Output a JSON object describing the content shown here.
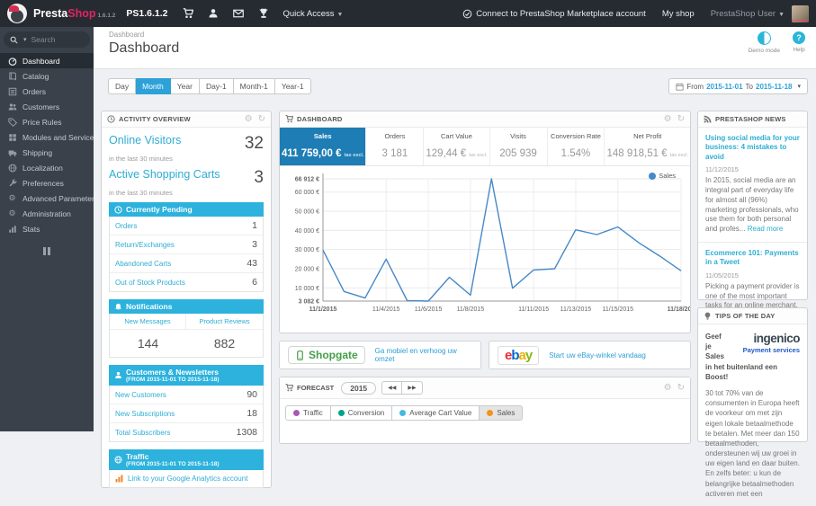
{
  "colors": {
    "accent": "#2eadd3",
    "section_header": "#2cb2dd",
    "kpi_active_blue": "#1d7db4",
    "line_blue": "#4788c7",
    "topbar_bg": "#262b31",
    "sidebar_bg": "#3a414a",
    "tab_active": "#2da1d8"
  },
  "topbar": {
    "brand_presta": "Presta",
    "brand_shop": "Shop",
    "brand_version": "1.6.1.2",
    "ps_version": "PS1.6.1.2",
    "quick_access": "Quick Access",
    "marketplace_link": "Connect to PrestaShop Marketplace account",
    "my_shop": "My shop",
    "user": "PrestaShop User",
    "avatar_caption": "PrestaShop"
  },
  "sidebar": {
    "search_placeholder": "Search",
    "items": [
      {
        "label": "Dashboard",
        "icon": "tachometer",
        "active": true
      },
      {
        "label": "Catalog",
        "icon": "book"
      },
      {
        "label": "Orders",
        "icon": "list"
      },
      {
        "label": "Customers",
        "icon": "users"
      },
      {
        "label": "Price Rules",
        "icon": "tag"
      },
      {
        "label": "Modules and Services",
        "icon": "modules"
      },
      {
        "label": "Shipping",
        "icon": "truck"
      },
      {
        "label": "Localization",
        "icon": "globe"
      },
      {
        "label": "Preferences",
        "icon": "wrench"
      },
      {
        "label": "Advanced Parameters",
        "icon": "cogs"
      },
      {
        "label": "Administration",
        "icon": "gear"
      },
      {
        "label": "Stats",
        "icon": "bar-chart"
      }
    ]
  },
  "header": {
    "breadcrumb": "Dashboard",
    "title": "Dashboard",
    "demo_mode": "Demo mode",
    "help": "Help"
  },
  "range": {
    "tabs": [
      {
        "label": "Day"
      },
      {
        "label": "Month",
        "active": true
      },
      {
        "label": "Year"
      },
      {
        "label": "Day-1"
      },
      {
        "label": "Month-1"
      },
      {
        "label": "Year-1"
      }
    ],
    "from_label": "From",
    "from": "2015-11-01",
    "to_label": "To",
    "to": "2015-11-18"
  },
  "activity": {
    "title": "ACTIVITY OVERVIEW",
    "online_visitors": {
      "label": "Online Visitors",
      "sub": "in the last 30 minutes",
      "value": "32"
    },
    "active_carts": {
      "label": "Active Shopping Carts",
      "sub": "in the last 30 minutes",
      "value": "3"
    },
    "pending": {
      "title": "Currently Pending",
      "rows": [
        {
          "label": "Orders",
          "value": "1"
        },
        {
          "label": "Return/Exchanges",
          "value": "3"
        },
        {
          "label": "Abandoned Carts",
          "value": "43"
        },
        {
          "label": "Out of Stock Products",
          "value": "6"
        }
      ]
    },
    "notifications": {
      "title": "Notifications",
      "col1": "New Messages",
      "col2": "Product Reviews",
      "val1": "144",
      "val2": "882"
    },
    "customers": {
      "title": "Customers & Newsletters",
      "subtitle": "(FROM 2015-11-01 TO 2015-11-18)",
      "rows": [
        {
          "label": "New Customers",
          "value": "90"
        },
        {
          "label": "New Subscriptions",
          "value": "18"
        },
        {
          "label": "Total Subscribers",
          "value": "1308"
        }
      ]
    },
    "traffic": {
      "title": "Traffic",
      "subtitle": "(FROM 2015-11-01 TO 2015-11-18)",
      "link": "Link to your Google Analytics account"
    }
  },
  "dashboard_panel": {
    "title": "DASHBOARD",
    "kpis": [
      {
        "label": "Sales",
        "value": "411 759,00 €",
        "suffix": "tax excl.",
        "active": true
      },
      {
        "label": "Orders",
        "value": "3 181"
      },
      {
        "label": "Cart Value",
        "value": "129,44 €",
        "suffix": "tax excl."
      },
      {
        "label": "Visits",
        "value": "205 939"
      },
      {
        "label": "Conversion Rate",
        "value": "1.54%"
      },
      {
        "label": "Net Profit",
        "value": "148 918,51 €",
        "suffix": "tax excl."
      }
    ]
  },
  "chart_data": {
    "type": "line",
    "title": "Sales",
    "legend": [
      "Sales"
    ],
    "legend_position": "top-right",
    "grid": true,
    "x": [
      "11/1/2015",
      "11/2/2015",
      "11/3/2015",
      "11/4/2015",
      "11/5/2015",
      "11/6/2015",
      "11/7/2015",
      "11/8/2015",
      "11/9/2015",
      "11/10/2015",
      "11/11/2015",
      "11/12/2015",
      "11/13/2015",
      "11/14/2015",
      "11/15/2015",
      "11/16/2015",
      "11/17/2015",
      "11/18/2015"
    ],
    "series": [
      {
        "name": "Sales",
        "color": "#4788c7",
        "values": [
          29700,
          8100,
          4700,
          25000,
          3300,
          3082,
          15500,
          6200,
          66912,
          9800,
          19300,
          20000,
          40300,
          37800,
          41800,
          33500,
          26500,
          18900
        ]
      }
    ],
    "ylim": [
      3082,
      66912
    ],
    "ylabel": "",
    "xlabel": "",
    "y_ticks": [
      {
        "value": 66912,
        "label": "66 912 €",
        "bold": true
      },
      {
        "value": 60000,
        "label": "60 000 €"
      },
      {
        "value": 50000,
        "label": "50 000 €"
      },
      {
        "value": 40000,
        "label": "40 000 €"
      },
      {
        "value": 30000,
        "label": "30 000 €"
      },
      {
        "value": 20000,
        "label": "20 000 €"
      },
      {
        "value": 10000,
        "label": "10 000 €"
      },
      {
        "value": 3082,
        "label": "3 082 €",
        "bold": true
      }
    ],
    "x_ticks": [
      {
        "index": 0,
        "label": "11/1/2015",
        "bold": true
      },
      {
        "index": 3,
        "label": "11/4/2015"
      },
      {
        "index": 5,
        "label": "11/6/2015"
      },
      {
        "index": 7,
        "label": "11/8/2015"
      },
      {
        "index": 10,
        "label": "11/11/2015"
      },
      {
        "index": 12,
        "label": "11/13/2015"
      },
      {
        "index": 14,
        "label": "11/15/2015"
      },
      {
        "index": 17,
        "label": "11/18/201",
        "bold": true
      }
    ]
  },
  "ads": {
    "shopgate": {
      "brand": "Shopgate",
      "link": "Ga mobiel en verhoog uw omzet"
    },
    "ebay": {
      "b1": "e",
      "b2": "b",
      "b3": "a",
      "b4": "y",
      "link": "Start uw eBay-winkel vandaag"
    }
  },
  "forecast": {
    "title": "FORECAST",
    "year": "2015",
    "prev": "◀◀",
    "next": "▶▶",
    "legend": [
      {
        "label": "Traffic",
        "color": "#a55ab4"
      },
      {
        "label": "Conversion",
        "color": "#00a28a"
      },
      {
        "label": "Average Cart Value",
        "color": "#45b8e0"
      },
      {
        "label": "Sales",
        "color": "#f0941e",
        "active": true
      }
    ]
  },
  "news": {
    "title": "PRESTASHOP NEWS",
    "items": [
      {
        "title": "Using social media for your business: 4 mistakes to avoid",
        "date": "11/12/2015",
        "excerpt": "In 2015, social media are an integral part of everyday life for almost all (96%) marketing professionals, who use them for both personal and profes...",
        "read_more": "Read more"
      },
      {
        "title": "Ecommerce 101: Payments in a Tweet",
        "date": "11/05/2015",
        "excerpt": "Picking a payment provider is one of the most important tasks for an online merchant, but it can also be one of the most difficult. We asked some o...",
        "read_more": "Read more"
      }
    ],
    "footer_link": "Find more news"
  },
  "tips": {
    "title": "TIPS OF THE DAY",
    "logo_main": "ingenico",
    "logo_sub": "Payment services",
    "heading": "Geef je Sales in het buitenland een Boost!",
    "body": "30 tot 70% van de consumenten in Europa heeft de voorkeur om met zijn eigen lokale betaalmethode te betalen. Met meer dan 150 betaalmethoden, ondersteunen wij uw groei in uw eigen land en daar buiten. En zelfs beter: u kun de belangrijke betaalmethoden activeren met een"
  }
}
